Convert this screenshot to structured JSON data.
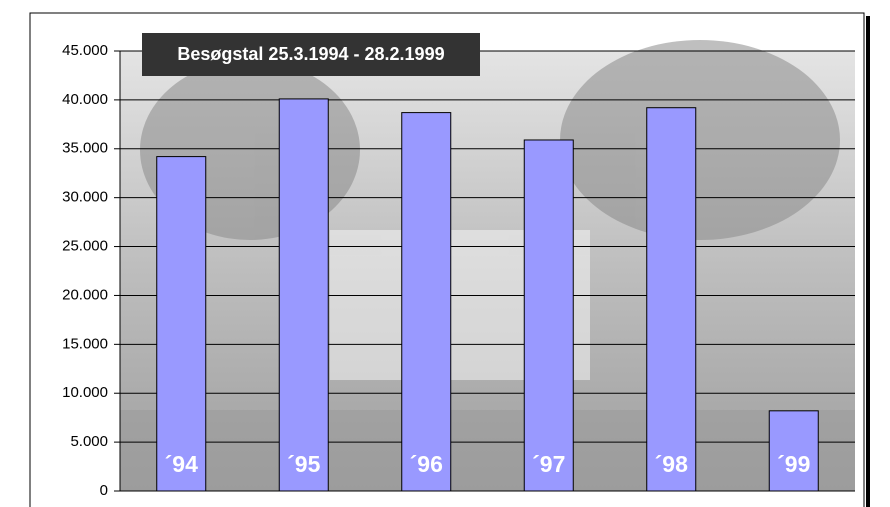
{
  "chart_data": {
    "type": "bar",
    "title": "Besøgstal 25.3.1994 - 28.2.1999",
    "categories": [
      "´94",
      "´95",
      "´96",
      "´97",
      "´98",
      "´99"
    ],
    "values": [
      34200,
      40100,
      38700,
      35900,
      39200,
      8200
    ],
    "color": "#9999ff",
    "ylim": [
      0,
      45000
    ],
    "yticks": [
      0,
      {
        "value": 5000,
        "label": "5.000"
      },
      {
        "value": 10000,
        "label": "10.000"
      },
      {
        "value": 15000,
        "label": "15.000"
      },
      {
        "value": 20000,
        "label": "20.000"
      },
      {
        "value": 25000,
        "label": "25.000"
      },
      {
        "value": 30000,
        "label": "30.000"
      },
      {
        "value": 35000,
        "label": "35.000"
      },
      {
        "value": 40000,
        "label": "40.000"
      },
      {
        "value": 45000,
        "label": "45.000"
      }
    ],
    "grid": true
  }
}
